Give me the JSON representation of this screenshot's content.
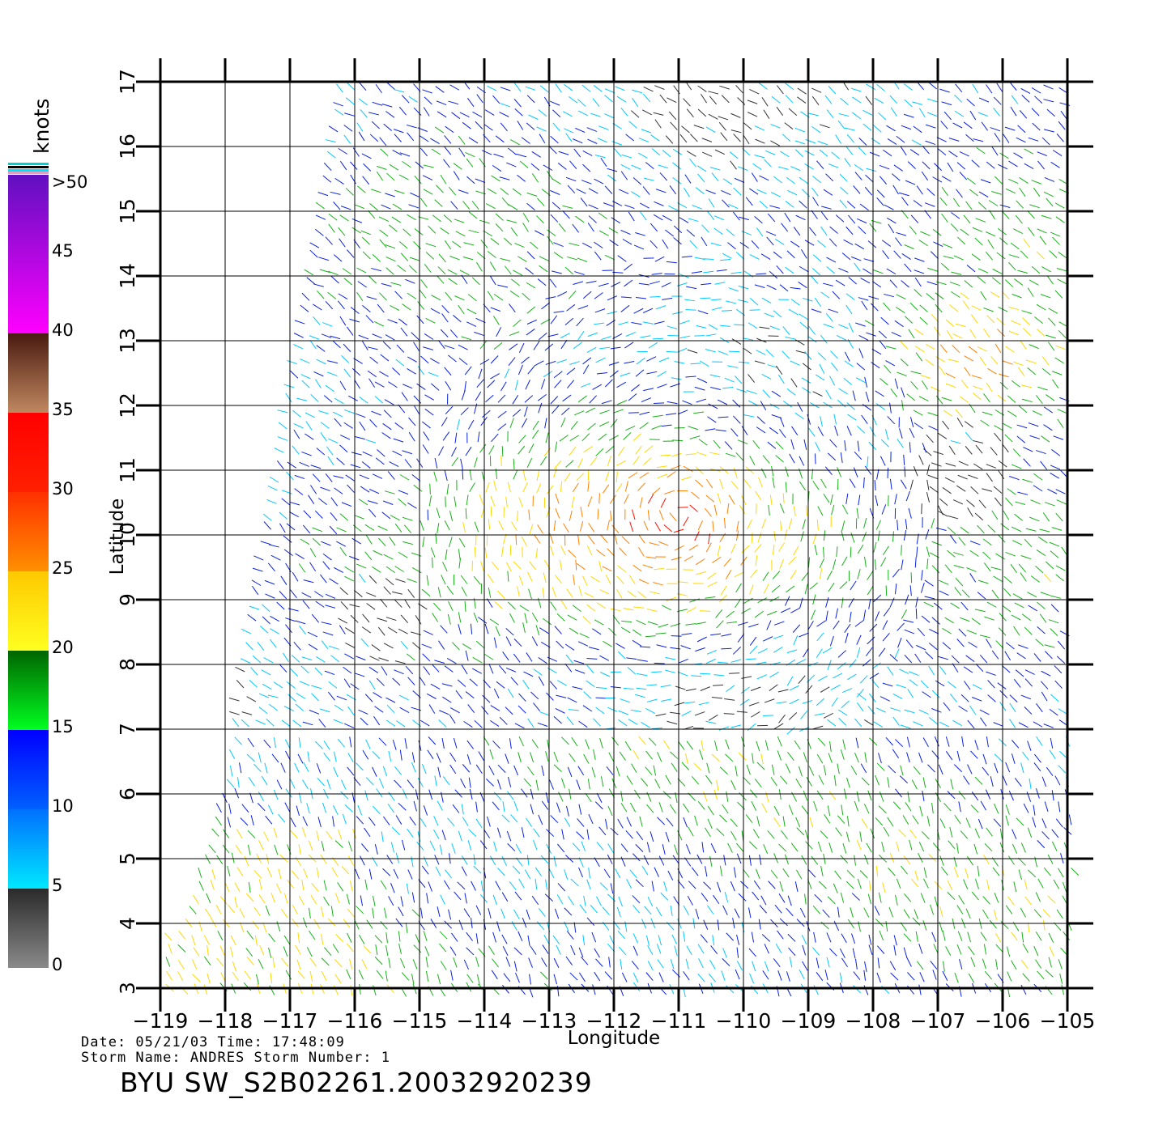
{
  "map": {
    "x_axis_label": "Longitude",
    "y_axis_label": "Latitude",
    "lon_ticks": [
      "−119",
      "−118",
      "−117",
      "−116",
      "−115",
      "−114",
      "−113",
      "−112",
      "−111",
      "−110",
      "−109",
      "−108",
      "−107",
      "−106",
      "−105"
    ],
    "lat_ticks": [
      "3",
      "4",
      "5",
      "6",
      "7",
      "8",
      "9",
      "10",
      "11",
      "12",
      "13",
      "14",
      "15",
      "16",
      "17"
    ],
    "lon_range": [
      -119,
      -105
    ],
    "lat_range": [
      3,
      17
    ]
  },
  "colorbar": {
    "title": "knots",
    "labels": [
      ">50",
      "45",
      "40",
      "35",
      "30",
      "25",
      "20",
      "15",
      "10",
      "5",
      "0"
    ],
    "bands": [
      {
        "from": 0,
        "to": 5,
        "top_color": "#2a2a2a",
        "bottom_color": "#8a8a8a"
      },
      {
        "from": 5,
        "to": 10,
        "top_color": "#0070ff",
        "bottom_color": "#00e8ff"
      },
      {
        "from": 10,
        "to": 15,
        "top_color": "#0000ff",
        "bottom_color": "#0060ff"
      },
      {
        "from": 15,
        "to": 20,
        "top_color": "#006400",
        "bottom_color": "#00ff20"
      },
      {
        "from": 20,
        "to": 25,
        "top_color": "#ffc800",
        "bottom_color": "#ffff20"
      },
      {
        "from": 25,
        "to": 30,
        "top_color": "#ff3000",
        "bottom_color": "#ff9000"
      },
      {
        "from": 30,
        "to": 35,
        "top_color": "#ff0000",
        "bottom_color": "#ff2000"
      },
      {
        "from": 35,
        "to": 40,
        "top_color": "#4a1a10",
        "bottom_color": "#c08860"
      },
      {
        "from": 40,
        "to": 50,
        "top_color": "#6010c0",
        "bottom_color": "#ff00ff"
      }
    ]
  },
  "footer": {
    "line1": "Date: 05/21/03   Time: 17:48:09",
    "line2": "Storm  Name: ANDRES   Storm  Number: 1",
    "product": "BYU  SW_S2B02261.20032920239"
  }
}
